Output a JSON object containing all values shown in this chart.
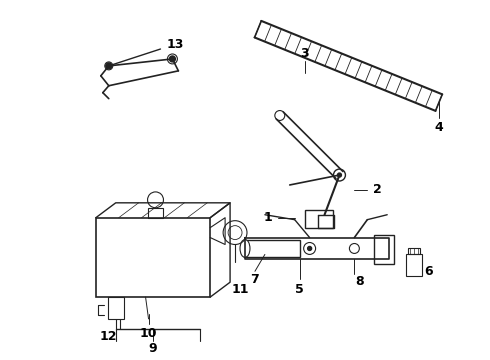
{
  "background_color": "#ffffff",
  "line_color": "#222222",
  "fig_width": 4.9,
  "fig_height": 3.6,
  "dpi": 100,
  "label_fs": 9
}
